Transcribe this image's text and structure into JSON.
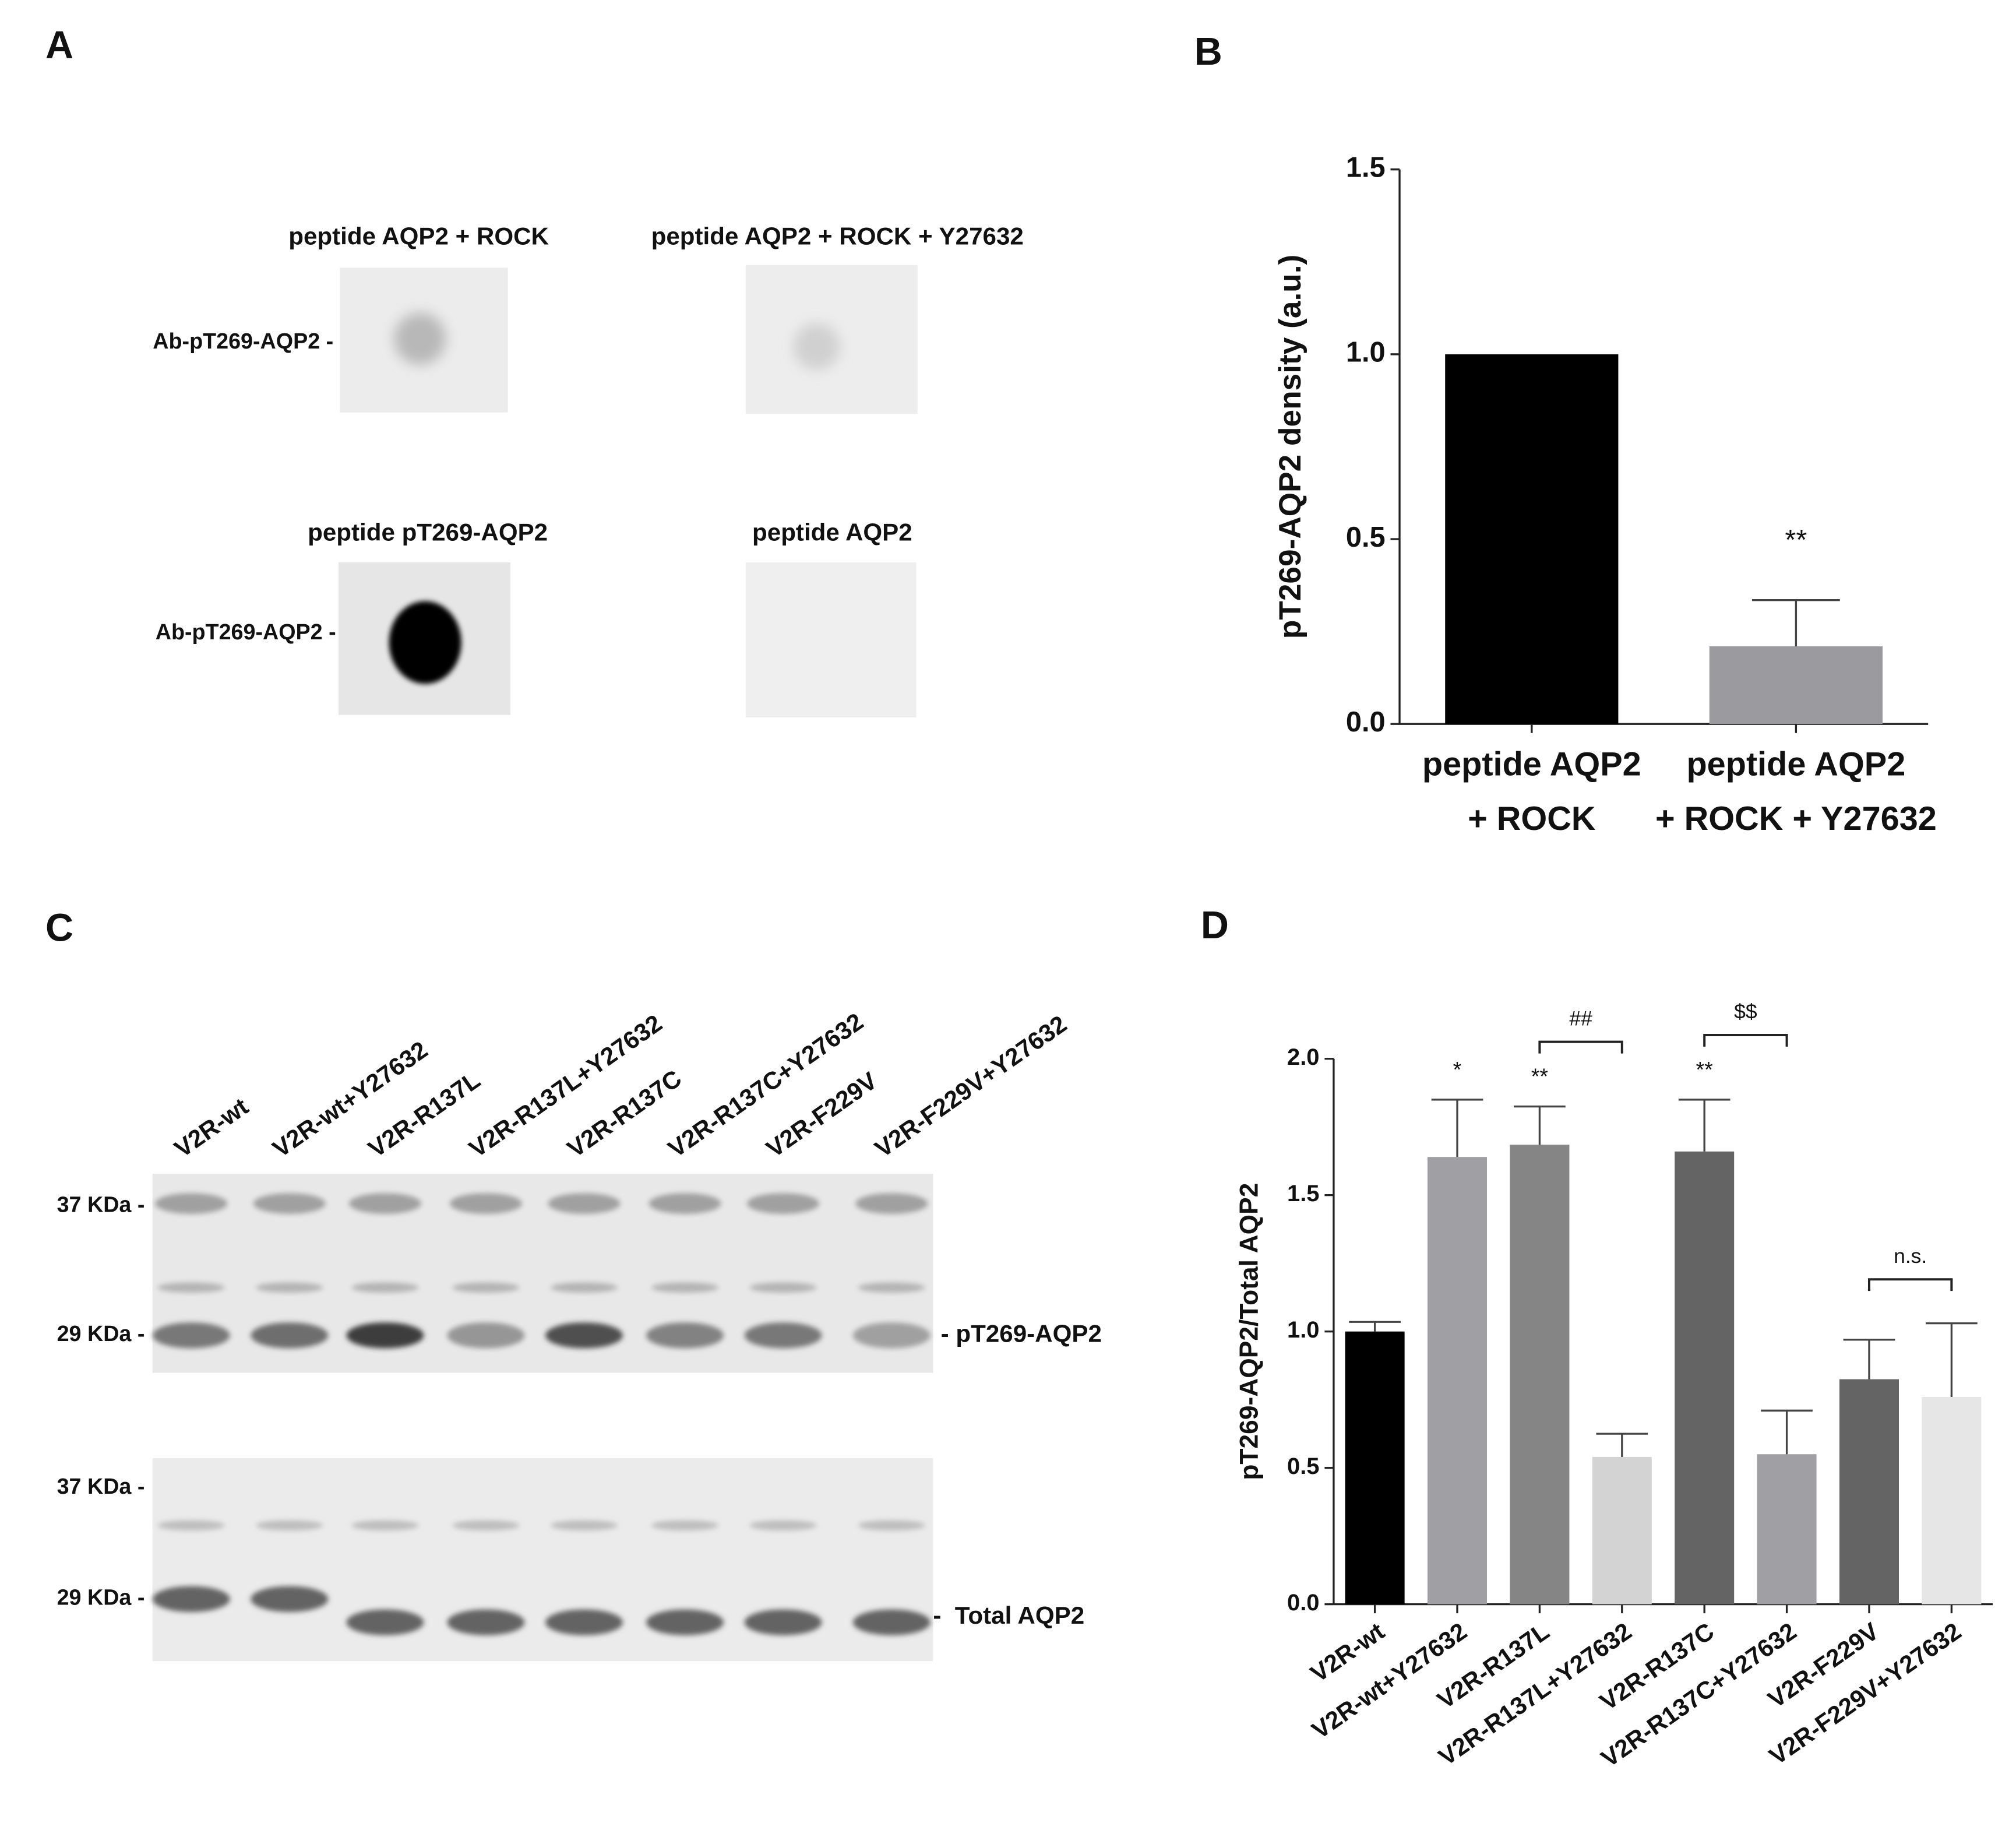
{
  "panel_labels": [
    "A",
    "B",
    "C",
    "D"
  ],
  "blot_A": {
    "spot_labels": [
      "peptide AQP2 + ROCK",
      "peptide AQP2 + ROCK + Y27632",
      "peptide pT269-AQP2",
      "peptide AQP2"
    ],
    "row_labels": [
      "Ab-pT269-AQP2 -",
      "Ab-pT269-AQP2 -"
    ]
  },
  "blot_C": {
    "lanes": [
      "V2R-wt",
      "V2R-wt+Y27632",
      "V2R-R137L",
      "V2R-R137L+Y27632",
      "V2R-R137C",
      "V2R-R137C+Y27632",
      "V2R-F229V",
      "V2R-F229V+Y27632"
    ],
    "markers": [
      "37 KDa -",
      "29 KDa -",
      "37 KDa -",
      "29 KDa -"
    ],
    "band_labels": [
      "- pT269-AQP2",
      "-  Total AQP2"
    ]
  },
  "chart_data": [
    {
      "type": "bar",
      "ylabel": "pT269-AQP2 density (a.u.)",
      "categories": [
        [
          "peptide AQP2",
          "+ ROCK"
        ],
        [
          "peptide AQP2",
          "+ ROCK + Y27632"
        ]
      ],
      "values": [
        1.0,
        0.21
      ],
      "errors": [
        null,
        0.125
      ],
      "colors": [
        "#000000",
        "#9b9b9f"
      ],
      "significance": [
        null,
        "**"
      ],
      "ylim": [
        0,
        1.5
      ],
      "yticks": [
        {
          "value": 0,
          "label": "0.0"
        },
        {
          "value": 0.5,
          "label": "0.5"
        },
        {
          "value": 1,
          "label": "1.0"
        },
        {
          "value": 1.5,
          "label": "1.5"
        }
      ],
      "grid": false
    },
    {
      "type": "bar",
      "ylabel": "pT269-AQP2/Total AQP2",
      "categories": [
        "V2R-wt",
        "V2R-wt+Y27632",
        "V2R-R137L",
        "V2R-R137L+Y27632",
        "V2R-R137C",
        "V2R-R137C+Y27632",
        "V2R-F229V",
        "V2R-F229V+Y27632"
      ],
      "values": [
        1.0,
        1.64,
        1.685,
        0.54,
        1.66,
        0.55,
        0.825,
        0.76
      ],
      "errors": [
        0.035,
        0.21,
        0.14,
        0.085,
        0.19,
        0.16,
        0.145,
        0.27
      ],
      "colors": [
        "#000000",
        "#a0a0a4",
        "#858585",
        "#d3d3d3",
        "#646464",
        "#a0a0a4",
        "#646464",
        "#e6e6e6"
      ],
      "significance": [
        null,
        "*",
        "**",
        null,
        "**",
        null,
        null,
        null
      ],
      "brackets": [
        {
          "from": 2,
          "to": 3,
          "label": "##"
        },
        {
          "from": 4,
          "to": 5,
          "label": "$$"
        },
        {
          "from": 6,
          "to": 7,
          "label": "n.s."
        }
      ],
      "ylim": [
        0,
        2
      ],
      "yticks": [
        {
          "value": 0,
          "label": "0.0"
        },
        {
          "value": 0.5,
          "label": "0.5"
        },
        {
          "value": 1,
          "label": "1.0"
        },
        {
          "value": 1.5,
          "label": "1.5"
        },
        {
          "value": 2,
          "label": "2.0"
        }
      ],
      "grid": false
    }
  ]
}
